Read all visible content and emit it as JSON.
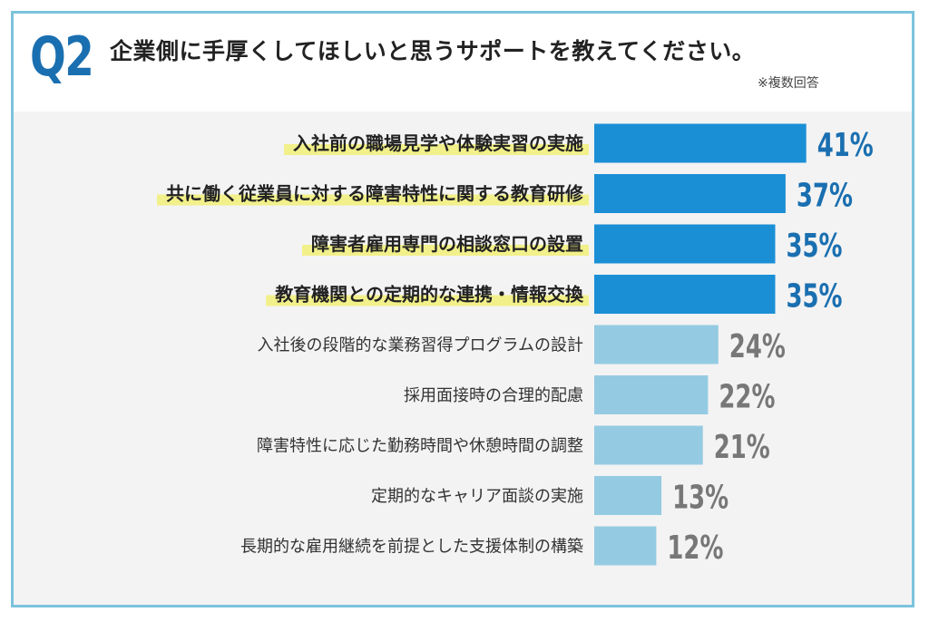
{
  "header": {
    "badge": "Q2",
    "question": "企業側に手厚くしてほしいと思うサポートを教えてください。",
    "note": "※複数回答"
  },
  "colors": {
    "border": "#7cc3dc",
    "badge": "#1a6fb0",
    "bar_top": "#1b8fd6",
    "bar_rest": "#94cbe2",
    "value_top": "#1a6fb0",
    "value_rest": "#777777",
    "highlight": "#f2f08a"
  },
  "chart_data": {
    "type": "bar",
    "orientation": "horizontal",
    "unit": "%",
    "highlight_top_n": 4,
    "categories": [
      "入社前の職場見学や体験実習の実施",
      "共に働く従業員に対する障害特性に関する教育研修",
      "障害者雇用専門の相談窓口の設置",
      "教育機関との定期的な連携・情報交換",
      "入社後の段階的な業務習得プログラムの設計",
      "採用面接時の合理的配慮",
      "障害特性に応じた勤務時間や休憩時間の調整",
      "定期的なキャリア面談の実施",
      "長期的な雇用継続を前提とした支援体制の構築"
    ],
    "values": [
      41,
      37,
      35,
      35,
      24,
      22,
      21,
      13,
      12
    ],
    "value_labels": [
      "41%",
      "37%",
      "35%",
      "35%",
      "24%",
      "22%",
      "21%",
      "13%",
      "12%"
    ]
  }
}
